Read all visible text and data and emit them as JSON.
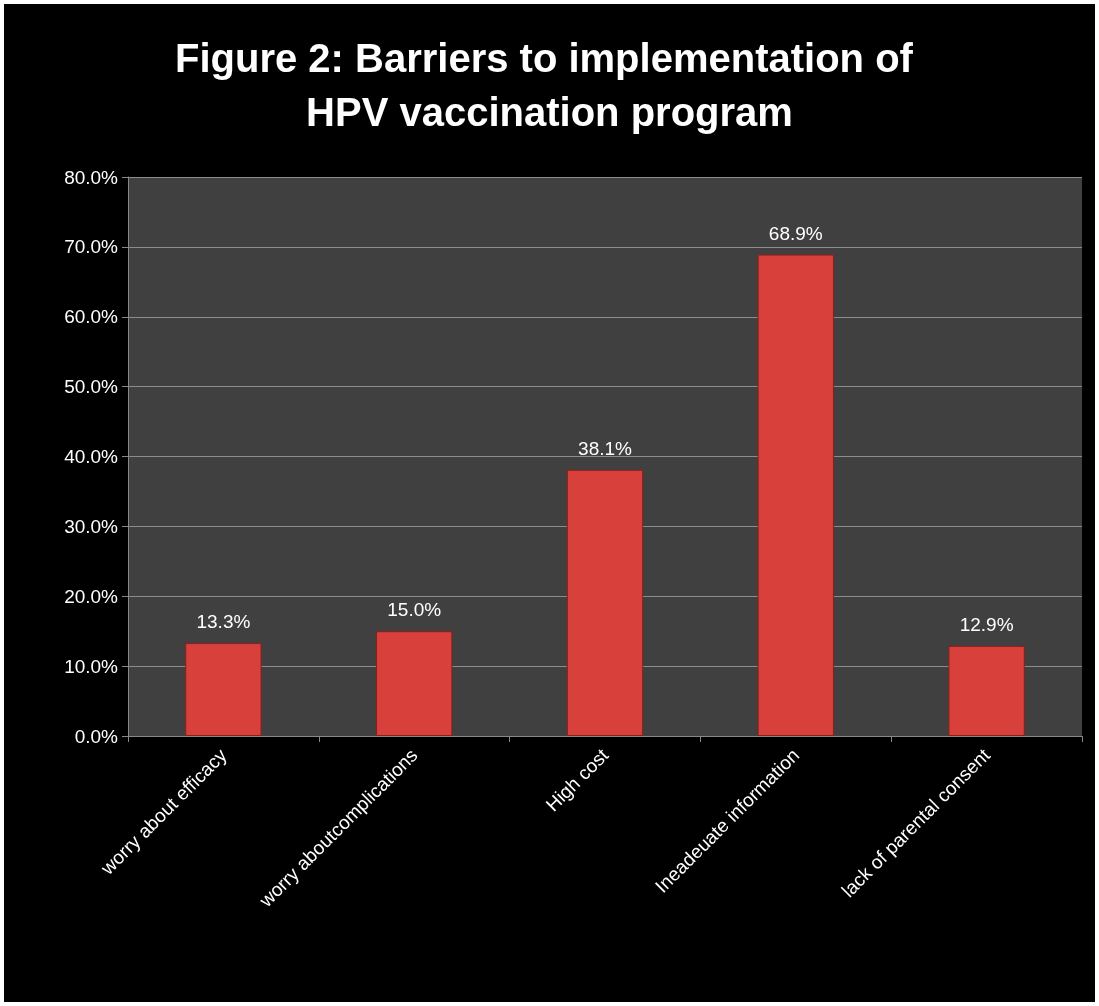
{
  "chart_data": {
    "type": "bar",
    "title": "Figure 2: Barriers to implementation of HPV vaccination program",
    "categories": [
      "worry about efficacy",
      "worry aboutcomplications",
      "High cost",
      "Ineadeuate information",
      "lack of parental consent"
    ],
    "values": [
      13.3,
      15.0,
      38.1,
      68.9,
      12.9
    ],
    "value_labels": [
      "13.3%",
      "15.0%",
      "38.1%",
      "68.9%",
      "12.9%"
    ],
    "color": "#d8403b",
    "ylim": [
      0,
      80
    ],
    "yticks": [
      {
        "value": 0,
        "label": "0.0%"
      },
      {
        "value": 10,
        "label": "10.0%"
      },
      {
        "value": 20,
        "label": "20.0%"
      },
      {
        "value": 30,
        "label": "30.0%"
      },
      {
        "value": 40,
        "label": "40.0%"
      },
      {
        "value": 50,
        "label": "50.0%"
      },
      {
        "value": 60,
        "label": "60.0%"
      },
      {
        "value": 70,
        "label": "70.0%"
      },
      {
        "value": 80,
        "label": "80.0%"
      }
    ],
    "grid": "y"
  }
}
